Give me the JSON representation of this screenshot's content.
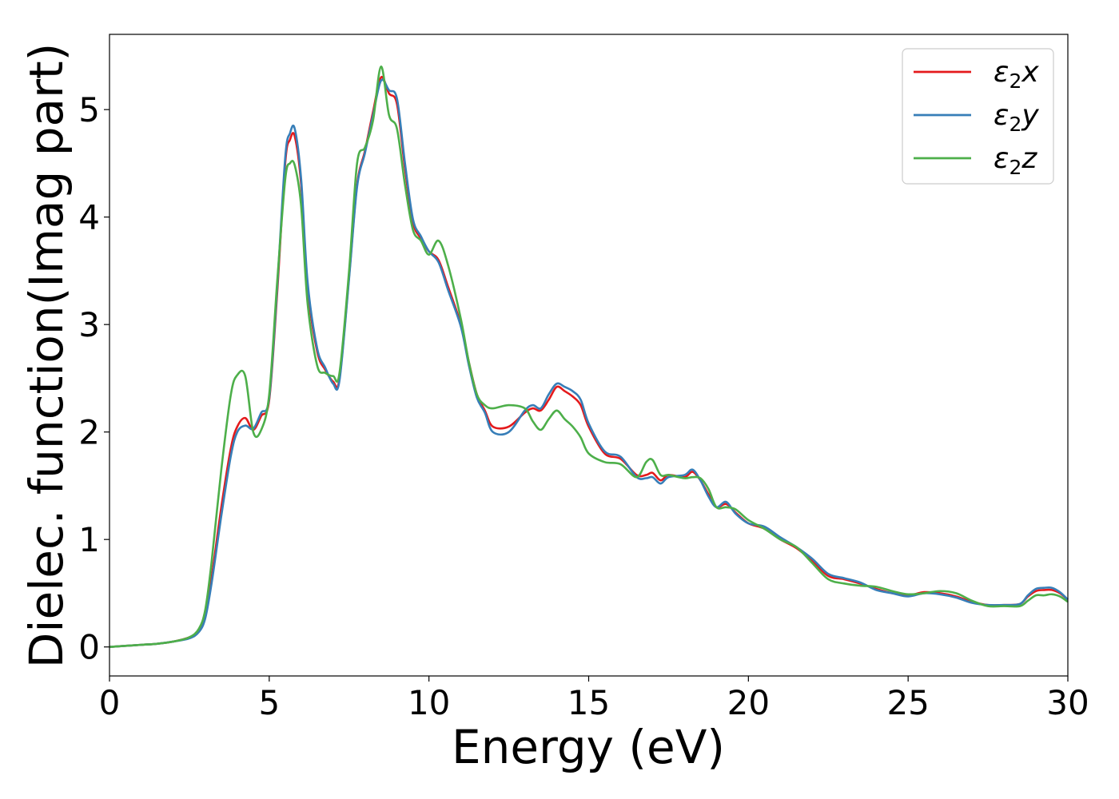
{
  "chart_data": {
    "type": "line",
    "title": "",
    "xlabel": "Energy (eV)",
    "ylabel": "Dielec. function(Imag part)",
    "xlim": [
      0,
      30
    ],
    "ylim": [
      -0.27,
      5.7
    ],
    "xticks": [
      0,
      5,
      10,
      15,
      20,
      25,
      30
    ],
    "xtick_labels": [
      "0",
      "5",
      "10",
      "15",
      "20",
      "25",
      "30"
    ],
    "yticks": [
      0,
      1,
      2,
      3,
      4,
      5
    ],
    "ytick_labels": [
      "0",
      "1",
      "2",
      "3",
      "4",
      "5"
    ],
    "grid": false,
    "legend_position": "top-right",
    "x": [
      0,
      0.5,
      1,
      1.5,
      2,
      2.5,
      2.8,
      3,
      3.2,
      3.5,
      3.8,
      4,
      4.25,
      4.5,
      4.75,
      5,
      5.25,
      5.5,
      5.65,
      5.8,
      6,
      6.2,
      6.5,
      6.75,
      7,
      7.2,
      7.5,
      7.75,
      8,
      8.25,
      8.5,
      8.75,
      9,
      9.25,
      9.5,
      9.75,
      10,
      10.3,
      10.6,
      11,
      11.25,
      11.5,
      11.75,
      12,
      12.5,
      13,
      13.25,
      13.5,
      13.75,
      14,
      14.25,
      14.5,
      14.75,
      15,
      15.5,
      16,
      16.5,
      16.8,
      17,
      17.25,
      17.5,
      18,
      18.25,
      18.5,
      18.75,
      19,
      19.3,
      19.6,
      20,
      20.5,
      21,
      21.5,
      22,
      22.5,
      23,
      23.5,
      24,
      24.5,
      25,
      25.5,
      26,
      26.5,
      27,
      27.5,
      28,
      28.5,
      28.75,
      29,
      29.25,
      29.5,
      29.75,
      30
    ],
    "series": [
      {
        "name": "ε₂x",
        "color": "#e41a1c",
        "values": [
          0.0,
          0.01,
          0.02,
          0.03,
          0.05,
          0.09,
          0.15,
          0.3,
          0.65,
          1.3,
          1.85,
          2.05,
          2.13,
          2.02,
          2.15,
          2.3,
          3.3,
          4.5,
          4.72,
          4.75,
          4.3,
          3.35,
          2.75,
          2.58,
          2.47,
          2.5,
          3.45,
          4.3,
          4.62,
          4.98,
          5.3,
          5.15,
          5.05,
          4.45,
          3.95,
          3.8,
          3.68,
          3.6,
          3.35,
          3.0,
          2.65,
          2.35,
          2.2,
          2.05,
          2.05,
          2.18,
          2.22,
          2.2,
          2.3,
          2.42,
          2.38,
          2.33,
          2.25,
          2.05,
          1.8,
          1.75,
          1.6,
          1.6,
          1.62,
          1.55,
          1.6,
          1.58,
          1.63,
          1.55,
          1.42,
          1.3,
          1.33,
          1.25,
          1.15,
          1.1,
          1.0,
          0.92,
          0.8,
          0.66,
          0.63,
          0.59,
          0.54,
          0.5,
          0.48,
          0.51,
          0.5,
          0.47,
          0.42,
          0.39,
          0.39,
          0.4,
          0.47,
          0.52,
          0.53,
          0.53,
          0.5,
          0.44
        ]
      },
      {
        "name": "ε₂y",
        "color": "#377eb8",
        "values": [
          0.0,
          0.01,
          0.02,
          0.03,
          0.05,
          0.08,
          0.14,
          0.27,
          0.6,
          1.22,
          1.78,
          2.0,
          2.06,
          2.03,
          2.18,
          2.32,
          3.35,
          4.55,
          4.78,
          4.82,
          4.35,
          3.4,
          2.78,
          2.6,
          2.45,
          2.48,
          3.43,
          4.28,
          4.6,
          4.95,
          5.27,
          5.18,
          5.1,
          4.5,
          3.98,
          3.82,
          3.68,
          3.58,
          3.32,
          2.98,
          2.62,
          2.32,
          2.18,
          2.0,
          2.0,
          2.2,
          2.25,
          2.22,
          2.35,
          2.45,
          2.42,
          2.38,
          2.3,
          2.08,
          1.82,
          1.77,
          1.58,
          1.57,
          1.58,
          1.52,
          1.58,
          1.6,
          1.65,
          1.55,
          1.4,
          1.3,
          1.35,
          1.24,
          1.15,
          1.12,
          1.02,
          0.93,
          0.82,
          0.68,
          0.64,
          0.6,
          0.53,
          0.5,
          0.47,
          0.5,
          0.49,
          0.46,
          0.41,
          0.39,
          0.39,
          0.4,
          0.48,
          0.54,
          0.55,
          0.55,
          0.51,
          0.44
        ]
      },
      {
        "name": "ε₂z",
        "color": "#4daf4a",
        "values": [
          0.0,
          0.01,
          0.02,
          0.03,
          0.05,
          0.09,
          0.17,
          0.35,
          0.8,
          1.65,
          2.35,
          2.53,
          2.52,
          2.0,
          2.02,
          2.35,
          3.4,
          4.35,
          4.5,
          4.48,
          4.1,
          3.2,
          2.62,
          2.55,
          2.52,
          2.55,
          3.5,
          4.5,
          4.65,
          4.9,
          5.4,
          4.95,
          4.82,
          4.3,
          3.88,
          3.78,
          3.65,
          3.78,
          3.55,
          3.05,
          2.65,
          2.35,
          2.25,
          2.22,
          2.25,
          2.22,
          2.1,
          2.02,
          2.12,
          2.2,
          2.12,
          2.05,
          1.95,
          1.8,
          1.72,
          1.7,
          1.58,
          1.72,
          1.74,
          1.6,
          1.6,
          1.57,
          1.58,
          1.57,
          1.47,
          1.3,
          1.3,
          1.28,
          1.18,
          1.1,
          1.0,
          0.93,
          0.78,
          0.63,
          0.59,
          0.57,
          0.56,
          0.52,
          0.49,
          0.5,
          0.52,
          0.5,
          0.43,
          0.38,
          0.38,
          0.38,
          0.43,
          0.48,
          0.48,
          0.49,
          0.47,
          0.42
        ]
      }
    ]
  },
  "legend": {
    "items": [
      {
        "symbol": "ε",
        "sub": "2",
        "axis": "x",
        "color": "#e41a1c"
      },
      {
        "symbol": "ε",
        "sub": "2",
        "axis": "y",
        "color": "#377eb8"
      },
      {
        "symbol": "ε",
        "sub": "2",
        "axis": "z",
        "color": "#4daf4a"
      }
    ]
  }
}
